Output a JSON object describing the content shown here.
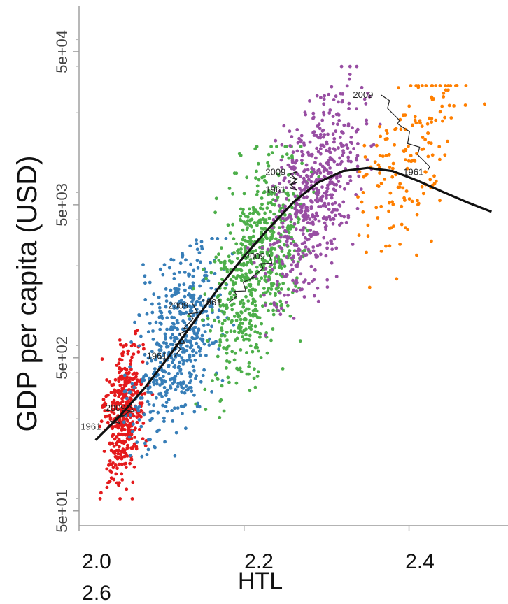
{
  "chart_data": {
    "type": "scatter",
    "title": "",
    "xlabel": "HTL",
    "ylabel": "GDP per capita (USD)",
    "y_scale": "log",
    "xlim": [
      2.0,
      2.52
    ],
    "ylim": [
      40,
      100000
    ],
    "x_ticks": [
      2.0,
      2.2,
      2.4,
      2.6
    ],
    "x_tick_labels": [
      "2.0",
      "2.2",
      "2.4",
      "2.6"
    ],
    "y_ticks": [
      50,
      500,
      5000,
      50000
    ],
    "y_tick_labels": [
      "5e+01",
      "5e+02",
      "5e+03",
      "5e+04"
    ],
    "grid": false,
    "legend": "none",
    "series": [
      {
        "color": "#e41a1c",
        "x_range": [
          2.02,
          2.09
        ],
        "y_range": [
          60,
          1200
        ],
        "x_center": 2.055,
        "y_center": 220,
        "count": 420
      },
      {
        "color": "#377eb8",
        "x_range": [
          2.04,
          2.21
        ],
        "y_range": [
          70,
          3000
        ],
        "x_center": 2.12,
        "y_center": 650,
        "count": 520
      },
      {
        "color": "#4daf4a",
        "x_range": [
          2.12,
          2.3
        ],
        "y_range": [
          150,
          12000
        ],
        "x_center": 2.215,
        "y_center": 2000,
        "count": 640
      },
      {
        "color": "#984ea3",
        "x_range": [
          2.19,
          2.37
        ],
        "y_range": [
          700,
          40000
        ],
        "x_center": 2.285,
        "y_center": 6000,
        "count": 560
      },
      {
        "color": "#ff7f00",
        "x_range": [
          2.31,
          2.5
        ],
        "y_range": [
          500,
          30000
        ],
        "x_center": 2.4,
        "y_center": 10000,
        "count": 170
      }
    ],
    "trend_line": {
      "x": [
        2.02,
        2.05,
        2.08,
        2.11,
        2.14,
        2.17,
        2.2,
        2.23,
        2.26,
        2.29,
        2.32,
        2.35,
        2.38,
        2.41,
        2.44,
        2.47,
        2.5
      ],
      "y": [
        145,
        210,
        320,
        520,
        870,
        1450,
        2300,
        3500,
        5200,
        7000,
        8300,
        8700,
        8300,
        7200,
        6100,
        5200,
        4500
      ]
    },
    "annotations": [
      {
        "text": "1961",
        "x": 2.002,
        "y": 170
      },
      {
        "text": "2009",
        "x": 2.032,
        "y": 225
      },
      {
        "text": "1961",
        "x": 2.082,
        "y": 490
      },
      {
        "text": "2009",
        "x": 2.108,
        "y": 1050
      },
      {
        "text": "1961",
        "x": 2.148,
        "y": 1100
      },
      {
        "text": "2009",
        "x": 2.201,
        "y": 2200
      },
      {
        "text": "2009",
        "x": 2.226,
        "y": 7800
      },
      {
        "text": "1961",
        "x": 2.226,
        "y": 6000
      },
      {
        "text": "2009",
        "x": 2.332,
        "y": 25000
      },
      {
        "text": "1961",
        "x": 2.393,
        "y": 7800
      }
    ]
  }
}
